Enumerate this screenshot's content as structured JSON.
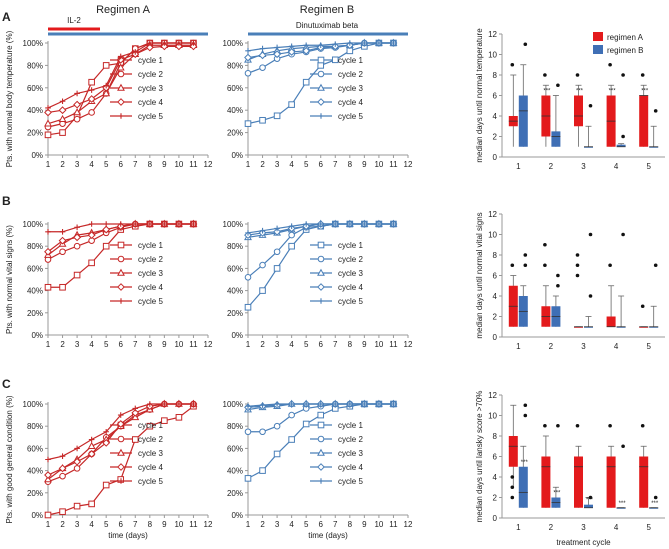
{
  "colors": {
    "red": "#c62828",
    "blue": "#4a7fb8",
    "bar_red": "#e31a1c",
    "bar_blue": "#3f6fb5",
    "axis": "#999999"
  },
  "titles": {
    "A": "Regimen  A",
    "B": "Regimen  B"
  },
  "panel_labels": [
    "A",
    "B",
    "C"
  ],
  "treatment_bars": {
    "il2": "IL-2",
    "dinutuximab": "Dinutuximab beta"
  },
  "time_label": "time (days)",
  "treatment_label": "treatment cycle",
  "cycle_names": [
    "cycle 1",
    "cycle 2",
    "cycle 3",
    "cycle 4",
    "cycle 5"
  ],
  "box_legend": [
    "regimen A",
    "regimen B"
  ],
  "row_ylabels": [
    "Pts. with normal body temperature (%)",
    "Pts. with normal vital signs (%)",
    "Pts. with good general condition (%)"
  ],
  "box_ylabels": [
    "median days  until  normal  temperature",
    "median days  until   normal  vital signs",
    "median days  until  lansky score >70%"
  ],
  "chart_data": [
    {
      "type": "line",
      "title": "Regimen  A",
      "ylabel": "Pts. with normal body temperature (%)",
      "xlabel": "",
      "xlim": [
        1,
        12
      ],
      "ylim": [
        0,
        100
      ],
      "x": [
        1,
        2,
        3,
        4,
        5,
        6,
        7,
        8,
        9,
        10,
        11
      ],
      "series": [
        {
          "name": "cycle 1",
          "values": [
            18,
            20,
            35,
            65,
            80,
            82,
            95,
            100,
            100,
            100,
            100
          ]
        },
        {
          "name": "cycle 2",
          "values": [
            25,
            28,
            32,
            38,
            55,
            82,
            95,
            100,
            100,
            100,
            100
          ]
        },
        {
          "name": "cycle 3",
          "values": [
            28,
            32,
            38,
            48,
            55,
            78,
            90,
            98,
            98,
            98,
            98
          ]
        },
        {
          "name": "cycle 4",
          "values": [
            38,
            40,
            45,
            50,
            60,
            85,
            90,
            96,
            97,
            97,
            97
          ]
        },
        {
          "name": "cycle 5",
          "values": [
            42,
            48,
            55,
            58,
            62,
            88,
            92,
            100,
            100,
            100,
            100
          ]
        }
      ]
    },
    {
      "type": "line",
      "title": "Regimen  B",
      "ylabel": "",
      "xlabel": "",
      "xlim": [
        1,
        12
      ],
      "ylim": [
        0,
        100
      ],
      "x": [
        1,
        2,
        3,
        4,
        5,
        6,
        7,
        8,
        9,
        10,
        11
      ],
      "series": [
        {
          "name": "cycle 1",
          "values": [
            28,
            31,
            35,
            45,
            65,
            80,
            85,
            93,
            97,
            100,
            100
          ]
        },
        {
          "name": "cycle 2",
          "values": [
            73,
            78,
            86,
            90,
            92,
            95,
            96,
            98,
            100,
            100,
            100
          ]
        },
        {
          "name": "cycle 3",
          "values": [
            85,
            90,
            93,
            95,
            96,
            97,
            97,
            98,
            100,
            100,
            100
          ]
        },
        {
          "name": "cycle 4",
          "values": [
            87,
            89,
            90,
            92,
            93,
            96,
            97,
            98,
            100,
            100,
            100
          ]
        },
        {
          "name": "cycle 5",
          "values": [
            93,
            95,
            96,
            97,
            98,
            98,
            99,
            100,
            100,
            100,
            100
          ]
        }
      ]
    },
    {
      "type": "line",
      "title": "",
      "ylabel": "Pts. with normal vital signs (%)",
      "xlabel": "",
      "xlim": [
        1,
        12
      ],
      "ylim": [
        0,
        100
      ],
      "x": [
        1,
        2,
        3,
        4,
        5,
        6,
        7,
        8,
        9,
        10,
        11
      ],
      "series": [
        {
          "name": "cycle 1",
          "values": [
            43,
            43,
            54,
            65,
            80,
            95,
            98,
            100,
            100,
            100,
            100
          ]
        },
        {
          "name": "cycle 2",
          "values": [
            68,
            75,
            80,
            85,
            92,
            97,
            100,
            100,
            100,
            100,
            100
          ]
        },
        {
          "name": "cycle 3",
          "values": [
            72,
            82,
            90,
            92,
            95,
            98,
            100,
            100,
            100,
            100,
            100
          ]
        },
        {
          "name": "cycle 4",
          "values": [
            75,
            85,
            88,
            90,
            95,
            98,
            100,
            100,
            100,
            100,
            100
          ]
        },
        {
          "name": "cycle 5",
          "values": [
            93,
            93,
            97,
            100,
            100,
            100,
            100,
            100,
            100,
            100,
            100
          ]
        }
      ]
    },
    {
      "type": "line",
      "title": "",
      "ylabel": "",
      "xlabel": "",
      "xlim": [
        1,
        12
      ],
      "ylim": [
        0,
        100
      ],
      "x": [
        1,
        2,
        3,
        4,
        5,
        6,
        7,
        8,
        9,
        10,
        11
      ],
      "series": [
        {
          "name": "cycle 1",
          "values": [
            25,
            40,
            60,
            80,
            95,
            98,
            100,
            100,
            100,
            100,
            100
          ]
        },
        {
          "name": "cycle 2",
          "values": [
            52,
            63,
            75,
            90,
            97,
            98,
            100,
            100,
            100,
            100,
            100
          ]
        },
        {
          "name": "cycle 3",
          "values": [
            88,
            90,
            92,
            95,
            98,
            100,
            100,
            100,
            100,
            100,
            100
          ]
        },
        {
          "name": "cycle 4",
          "values": [
            90,
            92,
            93,
            96,
            98,
            100,
            100,
            100,
            100,
            100,
            100
          ]
        },
        {
          "name": "cycle 5",
          "values": [
            92,
            94,
            96,
            98,
            100,
            100,
            100,
            100,
            100,
            100,
            100
          ]
        }
      ]
    },
    {
      "type": "line",
      "title": "",
      "ylabel": "Pts. with good general condition (%)",
      "xlabel": "time (days)",
      "xlim": [
        1,
        12
      ],
      "ylim": [
        0,
        100
      ],
      "x": [
        1,
        2,
        3,
        4,
        5,
        6,
        7,
        8,
        9,
        10,
        11
      ],
      "series": [
        {
          "name": "cycle 1",
          "values": [
            0,
            3,
            8,
            10,
            27,
            32,
            68,
            80,
            85,
            88,
            98
          ]
        },
        {
          "name": "cycle 2",
          "values": [
            30,
            35,
            42,
            55,
            70,
            80,
            90,
            95,
            100,
            100,
            100
          ]
        },
        {
          "name": "cycle 3",
          "values": [
            32,
            42,
            50,
            62,
            68,
            80,
            88,
            95,
            100,
            100,
            100
          ]
        },
        {
          "name": "cycle 4",
          "values": [
            36,
            42,
            48,
            55,
            65,
            82,
            92,
            98,
            100,
            100,
            100
          ]
        },
        {
          "name": "cycle 5",
          "values": [
            50,
            53,
            60,
            68,
            75,
            90,
            96,
            100,
            100,
            100,
            100
          ]
        }
      ]
    },
    {
      "type": "line",
      "title": "",
      "ylabel": "",
      "xlabel": "time (days)",
      "xlim": [
        1,
        12
      ],
      "ylim": [
        0,
        100
      ],
      "x": [
        1,
        2,
        3,
        4,
        5,
        6,
        7,
        8,
        9,
        10,
        11
      ],
      "series": [
        {
          "name": "cycle 1",
          "values": [
            33,
            40,
            55,
            68,
            82,
            90,
            96,
            98,
            100,
            100,
            100
          ]
        },
        {
          "name": "cycle 2",
          "values": [
            75,
            75,
            80,
            90,
            96,
            98,
            100,
            100,
            100,
            100,
            100
          ]
        },
        {
          "name": "cycle 3",
          "values": [
            95,
            97,
            98,
            100,
            100,
            100,
            100,
            100,
            100,
            100,
            100
          ]
        },
        {
          "name": "cycle 4",
          "values": [
            97,
            98,
            99,
            100,
            100,
            100,
            100,
            100,
            100,
            100,
            100
          ]
        },
        {
          "name": "cycle 5",
          "values": [
            98,
            99,
            100,
            100,
            100,
            100,
            100,
            100,
            100,
            100,
            100
          ]
        }
      ]
    },
    {
      "type": "bar",
      "title": "",
      "ylabel": "median days  until  normal  temperature",
      "xlabel": "",
      "ylim": [
        0,
        12
      ],
      "categories": [
        "1",
        "2",
        "3",
        "4",
        "5"
      ],
      "series": [
        {
          "name": "regimen A",
          "boxes": [
            {
              "q1": 3,
              "median": 3.5,
              "q3": 4,
              "lo": 1,
              "hi": 8
            },
            {
              "q1": 2,
              "median": 4,
              "q3": 6,
              "lo": 1,
              "hi": 7
            },
            {
              "q1": 3,
              "median": 4,
              "q3": 6,
              "lo": 1,
              "hi": 7
            },
            {
              "q1": 1,
              "median": 3.5,
              "q3": 6,
              "lo": 1,
              "hi": 7
            },
            {
              "q1": 1,
              "median": 6,
              "q3": 6,
              "lo": 1,
              "hi": 7
            }
          ],
          "outliers": [
            [
              9
            ],
            [
              8
            ],
            [
              8
            ],
            [
              9
            ],
            [
              8
            ]
          ],
          "sig": [
            "",
            "***",
            "***",
            "***",
            "***"
          ]
        },
        {
          "name": "regimen B",
          "boxes": [
            {
              "q1": 1,
              "median": 4.5,
              "q3": 6,
              "lo": 1,
              "hi": 9
            },
            {
              "q1": 1,
              "median": 2,
              "q3": 2.5,
              "lo": 1,
              "hi": 6
            },
            {
              "q1": 1,
              "median": 1,
              "q3": 1,
              "lo": 1,
              "hi": 3
            },
            {
              "q1": 1,
              "median": 1,
              "q3": 1.2,
              "lo": 1,
              "hi": 1.3
            },
            {
              "q1": 1,
              "median": 1,
              "q3": 1,
              "lo": 1,
              "hi": 3
            }
          ],
          "outliers": [
            [
              11
            ],
            [
              7
            ],
            [
              5
            ],
            [
              2,
              8
            ],
            [
              4.5
            ]
          ],
          "sig": [
            "",
            "",
            "",
            "",
            ""
          ]
        }
      ]
    },
    {
      "type": "bar",
      "title": "",
      "ylabel": "median days  until   normal vital signs",
      "xlabel": "",
      "ylim": [
        0,
        12
      ],
      "categories": [
        "1",
        "2",
        "3",
        "4",
        "5"
      ],
      "series": [
        {
          "name": "regimen A",
          "boxes": [
            {
              "q1": 1,
              "median": 3,
              "q3": 5,
              "lo": 1,
              "hi": 6
            },
            {
              "q1": 1,
              "median": 2,
              "q3": 3,
              "lo": 1,
              "hi": 5
            },
            {
              "q1": 1,
              "median": 1,
              "q3": 1,
              "lo": 1,
              "hi": 1
            },
            {
              "q1": 1,
              "median": 1,
              "q3": 2,
              "lo": 1,
              "hi": 5
            },
            {
              "q1": 1,
              "median": 1,
              "q3": 1,
              "lo": 1,
              "hi": 1
            }
          ],
          "outliers": [
            [
              7
            ],
            [
              7,
              9
            ],
            [
              6,
              7,
              8
            ],
            [
              7
            ],
            [
              3
            ]
          ],
          "sig": [
            "",
            "",
            "",
            "",
            ""
          ]
        },
        {
          "name": "regimen B",
          "boxes": [
            {
              "q1": 1,
              "median": 2.5,
              "q3": 4,
              "lo": 1,
              "hi": 5
            },
            {
              "q1": 1,
              "median": 2,
              "q3": 3,
              "lo": 1,
              "hi": 4
            },
            {
              "q1": 1,
              "median": 1,
              "q3": 1,
              "lo": 1,
              "hi": 2
            },
            {
              "q1": 1,
              "median": 1,
              "q3": 1,
              "lo": 1,
              "hi": 4
            },
            {
              "q1": 1,
              "median": 1,
              "q3": 1,
              "lo": 1,
              "hi": 3
            }
          ],
          "outliers": [
            [
              7,
              8
            ],
            [
              5,
              6
            ],
            [
              4,
              10
            ],
            [
              10
            ],
            [
              7
            ]
          ],
          "sig": [
            "",
            "",
            "",
            "",
            ""
          ]
        }
      ]
    },
    {
      "type": "bar",
      "title": "",
      "ylabel": "median days  until  lansky score >70%",
      "xlabel": "treatment cycle",
      "ylim": [
        0,
        12
      ],
      "categories": [
        "1",
        "2",
        "3",
        "4",
        "5"
      ],
      "series": [
        {
          "name": "regimen A",
          "boxes": [
            {
              "q1": 5,
              "median": 7,
              "q3": 8,
              "lo": 3,
              "hi": 11
            },
            {
              "q1": 1,
              "median": 5,
              "q3": 6,
              "lo": 1,
              "hi": 8
            },
            {
              "q1": 1,
              "median": 5,
              "q3": 6,
              "lo": 1,
              "hi": 7
            },
            {
              "q1": 1,
              "median": 5,
              "q3": 6,
              "lo": 1,
              "hi": 7
            },
            {
              "q1": 1,
              "median": 5,
              "q3": 6,
              "lo": 1,
              "hi": 7
            }
          ],
          "outliers": [
            [
              2,
              3,
              4
            ],
            [
              9
            ],
            [
              9
            ],
            [
              9
            ],
            [
              9
            ]
          ],
          "sig": [
            "",
            "",
            "",
            "",
            ""
          ]
        },
        {
          "name": "regimen B",
          "boxes": [
            {
              "q1": 1,
              "median": 2.5,
              "q3": 5,
              "lo": 1,
              "hi": 7
            },
            {
              "q1": 1,
              "median": 1.5,
              "q3": 2,
              "lo": 1,
              "hi": 3
            },
            {
              "q1": 1,
              "median": 1,
              "q3": 1.3,
              "lo": 1,
              "hi": 2
            },
            {
              "q1": 1,
              "median": 1,
              "q3": 1,
              "lo": 1,
              "hi": 1
            },
            {
              "q1": 1,
              "median": 1,
              "q3": 1,
              "lo": 1,
              "hi": 1
            }
          ],
          "outliers": [
            [
              10,
              11
            ],
            [
              9
            ],
            [
              2
            ],
            [
              7
            ],
            [
              2
            ]
          ],
          "sig": [
            "***",
            "***",
            "***",
            "***",
            "***"
          ]
        }
      ]
    }
  ]
}
